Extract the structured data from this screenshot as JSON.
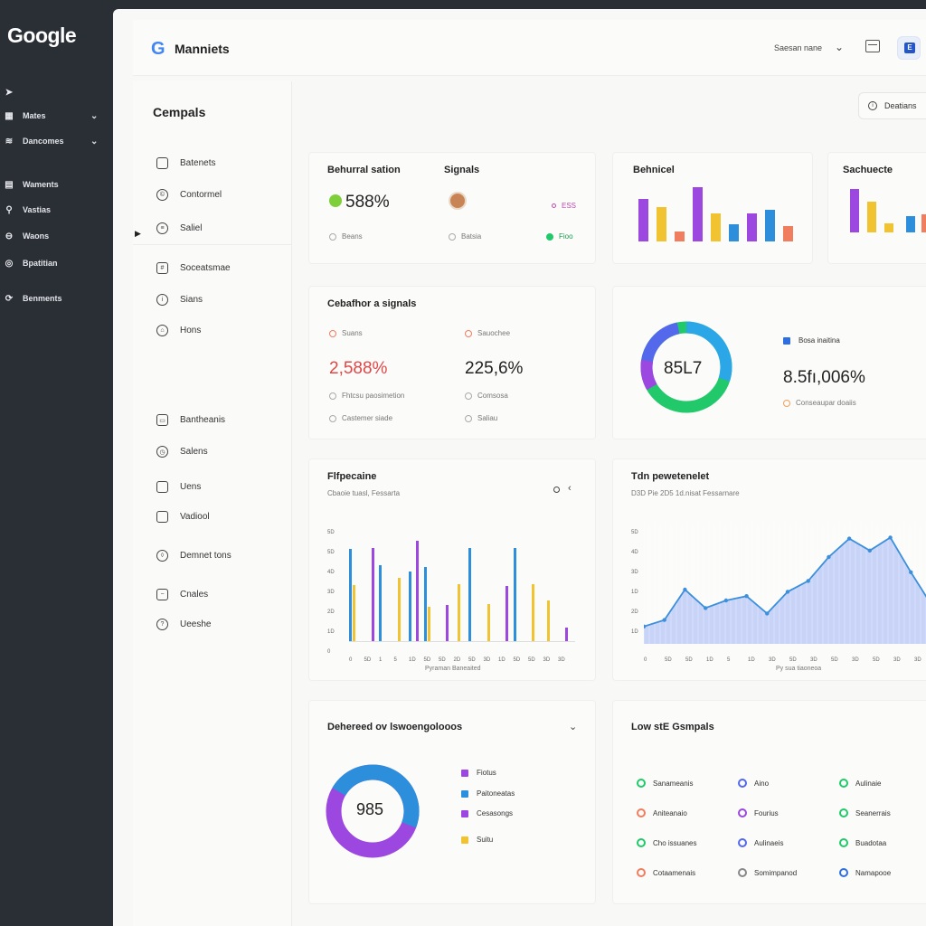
{
  "app": {
    "logo": "Google",
    "brand_g": "G",
    "brand": "Manniets"
  },
  "rail": {
    "items": [
      {
        "label": "",
        "icon": "arrow-icon"
      },
      {
        "label": "Mates",
        "icon": "grid-icon"
      },
      {
        "label": "Dancomes",
        "icon": "wifi-icon"
      },
      {
        "label": "Waments",
        "icon": "table-icon"
      },
      {
        "label": "Vastias",
        "icon": "person-icon"
      },
      {
        "label": "Waons",
        "icon": "circle-icon"
      },
      {
        "label": "Bpatitian",
        "icon": "target-icon"
      },
      {
        "label": "Benments",
        "icon": "spinner-icon"
      }
    ]
  },
  "topbar": {
    "select_label": "Saesan nane",
    "avatar_text": "E"
  },
  "subnav": {
    "title": "Cempals",
    "items": [
      "Batenets",
      "Contormel",
      "Saliel",
      "Soceatsmae",
      "Sians",
      "Hons",
      "Bantheanis",
      "Salens",
      "Uens",
      "Vadiool",
      "Demnet tons",
      "Cnales",
      "Ueeshe"
    ]
  },
  "actions": {
    "outline_button": "Deatians"
  },
  "kpi": {
    "behavioural": {
      "title": "Behurral sation",
      "value": "588%",
      "sub": "Beans"
    },
    "signals": {
      "title": "Signals",
      "badge": "ESS",
      "sub1": "Batsia",
      "sub2": "Fioo"
    },
    "behaviour_bar": {
      "title": "Behnicel"
    },
    "sachuete": {
      "title": "Sachuecte"
    }
  },
  "signals_card": {
    "title": "Cebafhor a signals",
    "col1": {
      "label": "Suans",
      "value": "2,588%",
      "sub1": "Fhtcsu paosimetion",
      "sub2": "Castemer siade"
    },
    "col2": {
      "label": "Sauochee",
      "value": "225,6%",
      "sub1": "Comsosa",
      "sub2": "Saliau"
    }
  },
  "donut_card": {
    "center": "85L7",
    "legend": "Bosa inaitina",
    "value": "8.5fı,006%",
    "sub": "Conseaupar doaiis"
  },
  "colors": {
    "purple": "#9b47e0",
    "yellow": "#f2c331",
    "blue": "#2d8fdc",
    "orange": "#f07d5e",
    "green": "#21c96a",
    "indigo": "#5468ec"
  },
  "bar_chart": {
    "title": "Flfpecaine",
    "subtitle": "Cbaoie tuasl, Fessarta",
    "xlabel": "Pyraman Baneaited",
    "y_ticks": [
      "5D",
      "5D",
      "4D",
      "3D",
      "2D",
      "1D",
      "0"
    ],
    "x_ticks": [
      "0",
      "5D",
      "1",
      "5",
      "1D",
      "5D",
      "5D",
      "2D",
      "5D",
      "3D",
      "1D",
      "5D",
      "5D",
      "3D",
      "3D"
    ]
  },
  "chart_data": [
    {
      "type": "bar",
      "title": "Behnicel",
      "series": [
        {
          "values": [
            76,
            0,
            0,
            96,
            0,
            0,
            50,
            0,
            0
          ]
        },
        {
          "values": [
            0,
            62,
            0,
            0,
            50,
            0,
            0,
            0,
            0
          ]
        },
        {
          "values": [
            0,
            0,
            18,
            0,
            0,
            30,
            0,
            56,
            28
          ]
        }
      ]
    },
    {
      "type": "bar",
      "title": "Flfpecaine",
      "xlabel": "Pyraman Baneaited",
      "series": [
        {
          "name": "blue",
          "values": [
            77,
            0,
            64,
            0,
            58,
            62,
            0,
            0,
            78,
            0,
            0,
            78,
            0,
            0,
            0
          ]
        },
        {
          "name": "yellow",
          "values": [
            47,
            0,
            0,
            53,
            0,
            29,
            0,
            48,
            0,
            31,
            0,
            0,
            48,
            34,
            0
          ]
        },
        {
          "name": "purple",
          "values": [
            0,
            78,
            0,
            0,
            84,
            0,
            30,
            0,
            0,
            0,
            46,
            0,
            0,
            0,
            11
          ]
        }
      ]
    },
    {
      "type": "area",
      "title": "Tdn pewetenelet",
      "xlabel": "Py sua tiaoneoa",
      "x": [
        0,
        5,
        10,
        15,
        20,
        25,
        30,
        35,
        40,
        45,
        50,
        55,
        60,
        65,
        70
      ],
      "y": [
        16,
        22,
        50,
        33,
        40,
        44,
        28,
        48,
        58,
        80,
        97,
        86,
        98,
        66,
        36
      ]
    },
    {
      "type": "pie",
      "title": "Dehereed ov lswoengolooos",
      "center_label": "985",
      "labels": [
        "Fiotus",
        "Paitoneatas",
        "Cesasongs",
        "Suitu"
      ],
      "values": [
        25,
        30,
        35,
        10
      ]
    }
  ],
  "area_chart": {
    "title": "Tdn pewetenelet",
    "subtitle": "D3D Pie 2D5 1d.nisat Fessarnare",
    "xlabel": "Py sua tiaoneoa",
    "y_ticks": [
      "5D",
      "4D",
      "3D",
      "1D",
      "2D",
      "1D"
    ],
    "x_ticks": [
      "0",
      "5D",
      "5D",
      "1D",
      "5",
      "1D",
      "3D",
      "5D",
      "3D",
      "5D",
      "3D",
      "5D",
      "3D",
      "3D"
    ]
  },
  "donut2": {
    "title": "Dehereed ov lswoengolooos",
    "center": "985",
    "legend": [
      "Fiotus",
      "Paitoneatas",
      "Cesasongs",
      "Suitu"
    ]
  },
  "low_signals": {
    "title": "Low stE Gsmpals",
    "items": [
      "Sanameanis",
      "Aino",
      "Aulinaie",
      "Aniteanaio",
      "Fourius",
      "Seanerrais",
      "Cho issuanes",
      "Aulinaeis",
      "Buadotaa",
      "Cotaamenais",
      "Somimpanod",
      "Namapooe"
    ]
  }
}
